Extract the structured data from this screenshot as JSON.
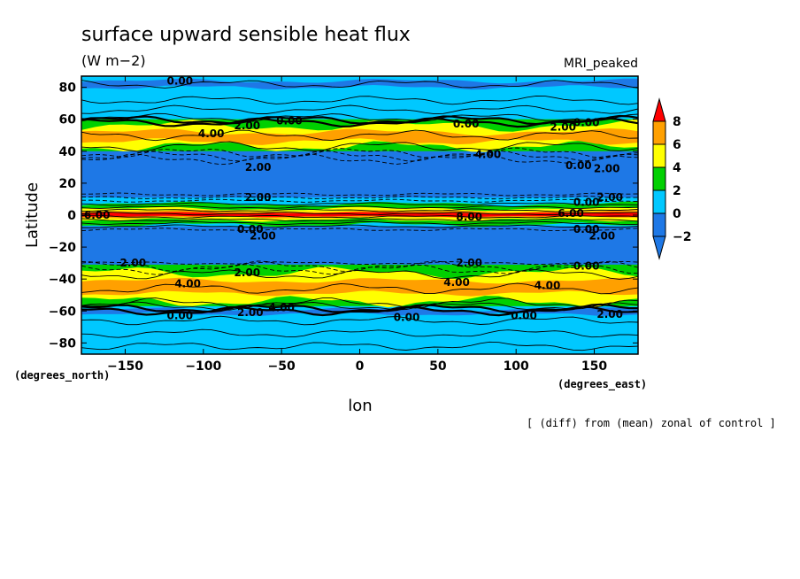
{
  "chart_data": {
    "type": "heatmap",
    "title": "surface upward sensible heat flux",
    "units": "(W m−2)",
    "model_label": "MRI_peaked",
    "xlabel": "lon",
    "ylabel": "Latitude",
    "x_unit_label": "(degrees_east)",
    "y_unit_label": "(degrees_north)",
    "note": "[ (diff) from (mean) zonal of control ]",
    "xlim": [
      -178,
      178
    ],
    "ylim": [
      -87,
      87
    ],
    "x_ticks": [
      -150,
      -100,
      -50,
      0,
      50,
      100,
      150
    ],
    "x_tick_labels": [
      "−150",
      "−100",
      "−50",
      "0",
      "50",
      "100",
      "150"
    ],
    "y_ticks": [
      80,
      60,
      40,
      20,
      0,
      -20,
      -40,
      -60,
      -80
    ],
    "y_tick_labels": [
      "80",
      "60",
      "40",
      "20",
      "0",
      "−20",
      "−40",
      "−60",
      "−80"
    ],
    "colorbar": {
      "levels": [
        -2,
        0,
        2,
        4,
        6,
        8
      ],
      "level_labels": [
        "−2",
        "0",
        "2",
        "4",
        "6",
        "8"
      ],
      "colors": [
        "#1e78e6",
        "#00c8ff",
        "#00d000",
        "#ffff00",
        "#ffa000",
        "#ff0000"
      ],
      "extend": "both"
    },
    "colors": {
      "below_neg2": "#1e78e6",
      "neg2_to_0": "#1e78e6",
      "zero_to_2": "#00c8ff",
      "two_to_4": "#00d000",
      "four_to_6": "#ffff00",
      "six_to_8": "#ffa000",
      "above_8": "#ff0000"
    },
    "zonal_bands": [
      {
        "lat_from": 87,
        "lat_to": 60,
        "value_range": "0 to 2"
      },
      {
        "lat_from": 60,
        "lat_to": 40,
        "value_range": "2 to 6"
      },
      {
        "lat_from": 40,
        "lat_to": 10,
        "value_range": "below -2"
      },
      {
        "lat_from": 10,
        "lat_to": -8,
        "value_range": "-2 to 10 (peak near equator)"
      },
      {
        "lat_from": -8,
        "lat_to": -33,
        "value_range": "below -2"
      },
      {
        "lat_from": -33,
        "lat_to": -58,
        "value_range": "2 to 6"
      },
      {
        "lat_from": -58,
        "lat_to": -87,
        "value_range": "0 to 2"
      }
    ],
    "contour_labels": [
      {
        "text": "0.00",
        "lon": -115,
        "lat": 84
      },
      {
        "text": "4.00",
        "lon": -95,
        "lat": 51
      },
      {
        "text": "2.00",
        "lon": -72,
        "lat": 56
      },
      {
        "text": "0.00",
        "lon": -45,
        "lat": 59
      },
      {
        "text": "0.00",
        "lon": 68,
        "lat": 57
      },
      {
        "text": "0.00",
        "lon": 145,
        "lat": 58
      },
      {
        "text": "2.00",
        "lon": 130,
        "lat": 55
      },
      {
        "text": "4.00",
        "lon": 82,
        "lat": 38
      },
      {
        "text": "2.00",
        "lon": -65,
        "lat": 30
      },
      {
        "text": "0.00",
        "lon": 140,
        "lat": 31
      },
      {
        "text": "2.00",
        "lon": 158,
        "lat": 29
      },
      {
        "text": "2.00",
        "lon": -65,
        "lat": 11
      },
      {
        "text": "2.00",
        "lon": 160,
        "lat": 11
      },
      {
        "text": "0.00",
        "lon": 145,
        "lat": 8
      },
      {
        "text": "6.00",
        "lon": -168,
        "lat": 0
      },
      {
        "text": "8.00",
        "lon": 70,
        "lat": -1
      },
      {
        "text": "6.00",
        "lon": 135,
        "lat": 1
      },
      {
        "text": "0.00",
        "lon": -70,
        "lat": -9
      },
      {
        "text": "2.00",
        "lon": -62,
        "lat": -13
      },
      {
        "text": "2.00",
        "lon": 155,
        "lat": -13
      },
      {
        "text": "0.00",
        "lon": 145,
        "lat": -9
      },
      {
        "text": "2.00",
        "lon": -145,
        "lat": -30
      },
      {
        "text": "2.00",
        "lon": 70,
        "lat": -30
      },
      {
        "text": "0.00",
        "lon": 145,
        "lat": -32
      },
      {
        "text": "2.00",
        "lon": -72,
        "lat": -36
      },
      {
        "text": "4.00",
        "lon": -110,
        "lat": -43
      },
      {
        "text": "4.00",
        "lon": 62,
        "lat": -42
      },
      {
        "text": "4.00",
        "lon": 120,
        "lat": -44
      },
      {
        "text": "4.00",
        "lon": -50,
        "lat": -58
      },
      {
        "text": "2.00",
        "lon": -70,
        "lat": -61
      },
      {
        "text": "0.00",
        "lon": -115,
        "lat": -63
      },
      {
        "text": "0.00",
        "lon": 30,
        "lat": -64
      },
      {
        "text": "0.00",
        "lon": 105,
        "lat": -63
      },
      {
        "text": "2.00",
        "lon": 160,
        "lat": -62
      }
    ]
  }
}
